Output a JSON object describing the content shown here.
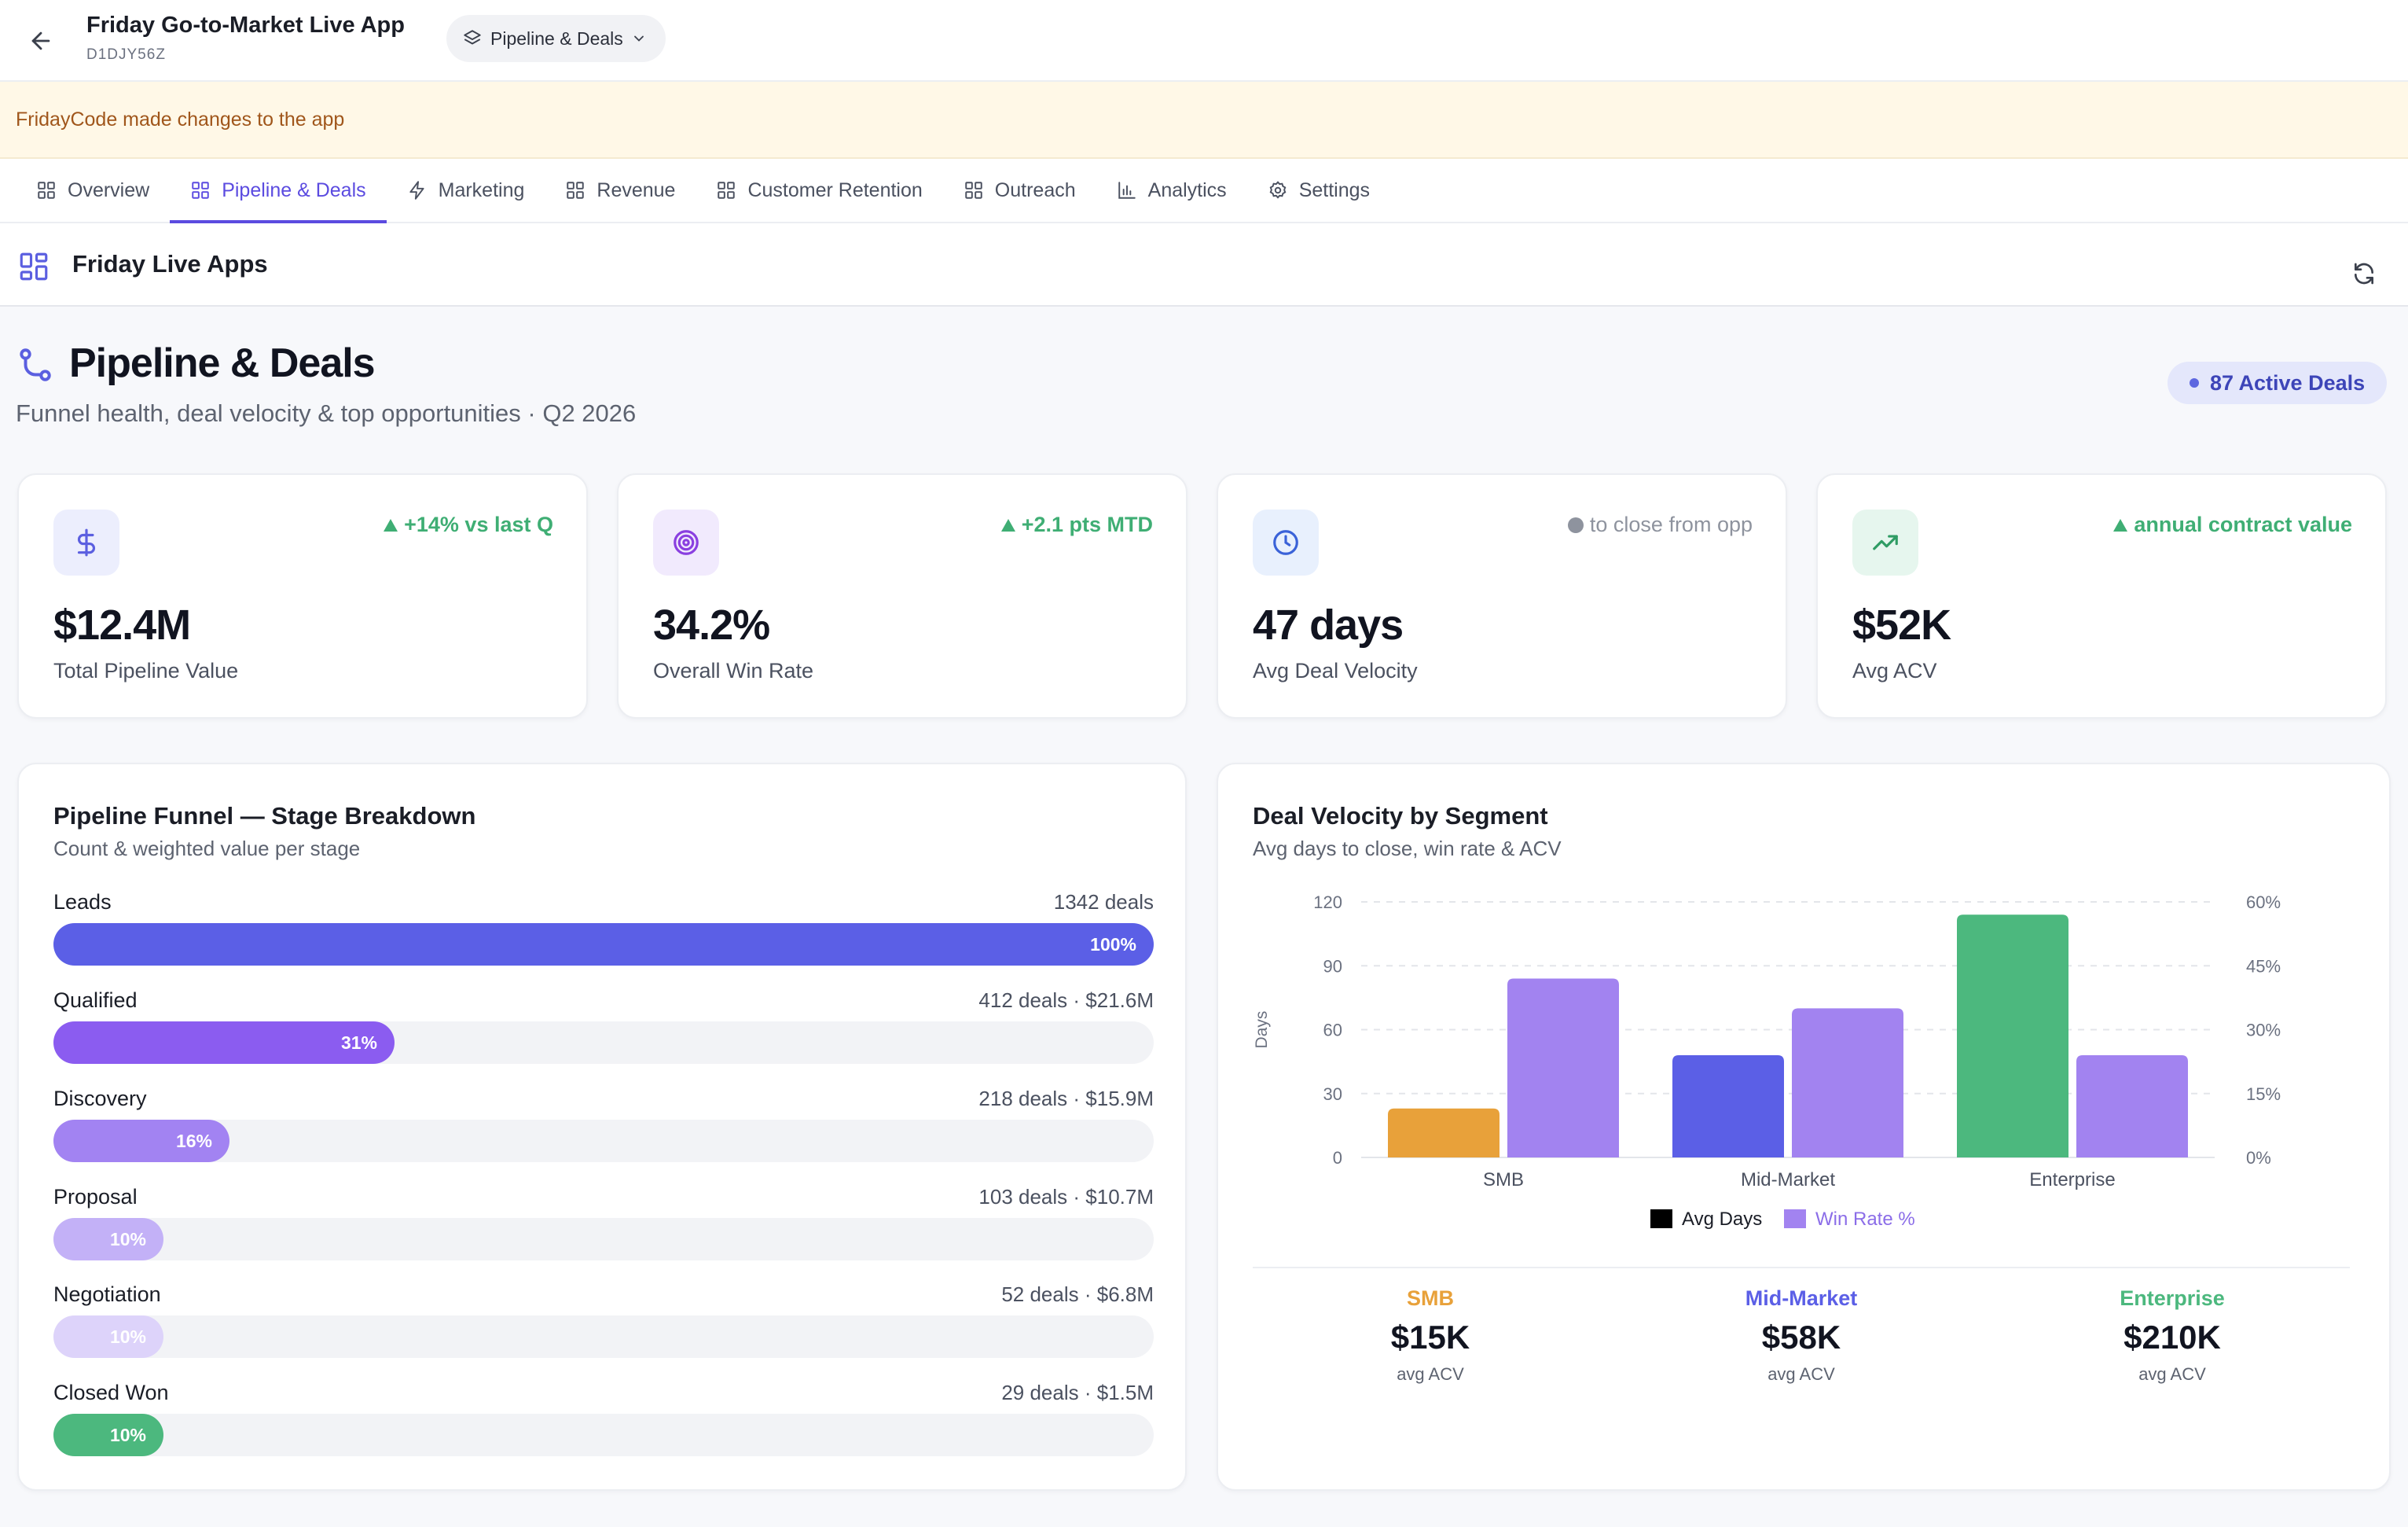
{
  "header": {
    "app_title": "Friday Go-to-Market Live App",
    "app_id": "D1DJY56Z",
    "page_selector": "Pipeline & Deals",
    "icons": {
      "back": "arrow-left-icon",
      "layers": "layers-icon",
      "chevron": "chevron-down-icon"
    }
  },
  "notice": {
    "text": "FridayCode made changes to the app"
  },
  "tabs": [
    {
      "label": "Overview",
      "icon": "grid-icon",
      "active": false
    },
    {
      "label": "Pipeline & Deals",
      "icon": "grid-icon",
      "active": true
    },
    {
      "label": "Marketing",
      "icon": "bolt-icon",
      "active": false
    },
    {
      "label": "Revenue",
      "icon": "grid-icon",
      "active": false
    },
    {
      "label": "Customer Retention",
      "icon": "grid-icon",
      "active": false
    },
    {
      "label": "Outreach",
      "icon": "grid-icon",
      "active": false
    },
    {
      "label": "Analytics",
      "icon": "bar-chart-icon",
      "active": false
    },
    {
      "label": "Settings",
      "icon": "gear-icon",
      "active": false
    }
  ],
  "livebar": {
    "title": "Friday Live Apps",
    "icon": "apps-grid-icon",
    "refresh_icon": "refresh-icon"
  },
  "page": {
    "title": "Pipeline & Deals",
    "subtitle": "Funnel health, deal velocity & top opportunities · Q2 2026",
    "badge": "87 Active Deals"
  },
  "kpis": [
    {
      "value": "$12.4M",
      "label": "Total Pipeline Value",
      "delta": "+14% vs last Q",
      "trend": "up",
      "icon": "dollar-icon",
      "icon_bg": "#eceefd",
      "icon_color": "#5b5fe0"
    },
    {
      "value": "34.2%",
      "label": "Overall Win Rate",
      "delta": "+2.1 pts MTD",
      "trend": "up",
      "icon": "target-icon",
      "icon_bg": "#f1eafd",
      "icon_color": "#8a3fe0"
    },
    {
      "value": "47 days",
      "label": "Avg Deal Velocity",
      "delta": "to close from opp",
      "trend": "neutral",
      "icon": "clock-icon",
      "icon_bg": "#e8f0fd",
      "icon_color": "#3a62d8"
    },
    {
      "value": "$52K",
      "label": "Avg ACV",
      "delta": "annual contract value",
      "trend": "up",
      "icon": "trending-up-icon",
      "icon_bg": "#e6f6ee",
      "icon_color": "#2f9c64"
    }
  ],
  "funnel": {
    "title": "Pipeline Funnel — Stage Breakdown",
    "subtitle": "Count & weighted value per stage",
    "stages": [
      {
        "name": "Leads",
        "meta": "1342 deals",
        "pct_label": "100%",
        "bar_fraction": 1.0,
        "color": "#5b5fe6"
      },
      {
        "name": "Qualified",
        "meta": "412 deals · $21.6M",
        "pct_label": "31%",
        "bar_fraction": 0.31,
        "color": "#8b5cf0"
      },
      {
        "name": "Discovery",
        "meta": "218 deals · $15.9M",
        "pct_label": "16%",
        "bar_fraction": 0.16,
        "color": "#a283f2"
      },
      {
        "name": "Proposal",
        "meta": "103 deals · $10.7M",
        "pct_label": "10%",
        "bar_fraction": 0.1,
        "color": "#c3b1f7"
      },
      {
        "name": "Negotiation",
        "meta": "52 deals · $6.8M",
        "pct_label": "10%",
        "bar_fraction": 0.1,
        "color": "#ddd3fa"
      },
      {
        "name": "Closed Won",
        "meta": "29 deals · $1.5M",
        "pct_label": "10%",
        "bar_fraction": 0.1,
        "color": "#4cb87e"
      }
    ]
  },
  "velocity": {
    "title": "Deal Velocity by Segment",
    "subtitle": "Avg days to close, win rate & ACV",
    "segments": [
      {
        "name": "SMB",
        "acv": "$15K",
        "acv_label": "avg ACV",
        "color": "#e8a13a"
      },
      {
        "name": "Mid-Market",
        "acv": "$58K",
        "acv_label": "avg ACV",
        "color": "#5b5fe6"
      },
      {
        "name": "Enterprise",
        "acv": "$210K",
        "acv_label": "avg ACV",
        "color": "#4cb87e"
      }
    ]
  },
  "chart_data": {
    "type": "bar",
    "categories": [
      "SMB",
      "Mid-Market",
      "Enterprise"
    ],
    "series": [
      {
        "name": "Avg Days",
        "axis": "left",
        "values": [
          23,
          48,
          114
        ],
        "colors": [
          "#e8a13a",
          "#5b5fe6",
          "#4cb87e"
        ]
      },
      {
        "name": "Win Rate %",
        "axis": "right",
        "values": [
          42,
          35,
          24
        ],
        "color": "#a283f0"
      }
    ],
    "ylabel": "Days",
    "ylim": [
      0,
      120
    ],
    "yticks": [
      "0",
      "30",
      "60",
      "90",
      "120"
    ],
    "y2lim": [
      0,
      60
    ],
    "y2ticks": [
      "0%",
      "15%",
      "30%",
      "45%",
      "60%"
    ],
    "legend": [
      {
        "label": "Avg Days",
        "swatch": "#000000",
        "text_color": "#1a1d26"
      },
      {
        "label": "Win Rate %",
        "swatch": "#a283f0",
        "text_color": "#8b6de8"
      }
    ],
    "legend_position": "bottom",
    "grid": true
  }
}
